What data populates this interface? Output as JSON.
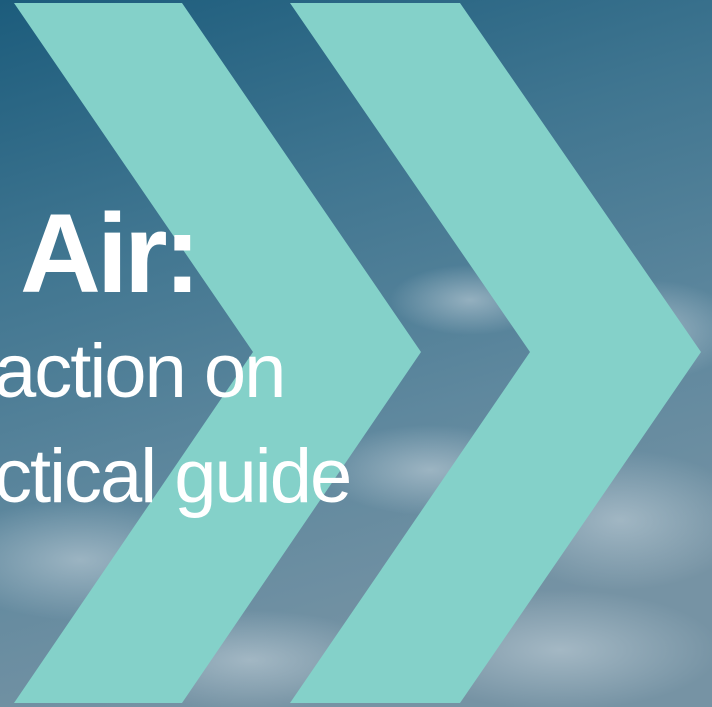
{
  "cover": {
    "title": "Air:",
    "subtitle_lines": [
      "action on",
      "ctical guide"
    ]
  }
}
